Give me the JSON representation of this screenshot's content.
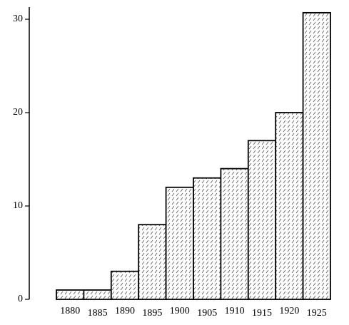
{
  "chart_data": {
    "type": "bar",
    "categories": [
      "1880",
      "1885",
      "1890",
      "1895",
      "1900",
      "1905",
      "1910",
      "1915",
      "1920",
      "1925"
    ],
    "values": [
      1,
      1,
      3,
      8,
      12,
      13,
      14,
      17,
      20,
      30.7
    ],
    "color": "#ffffff",
    "ylim": [
      0,
      31.3
    ],
    "yticks": [
      0,
      10,
      20,
      30
    ],
    "grid": false
  }
}
